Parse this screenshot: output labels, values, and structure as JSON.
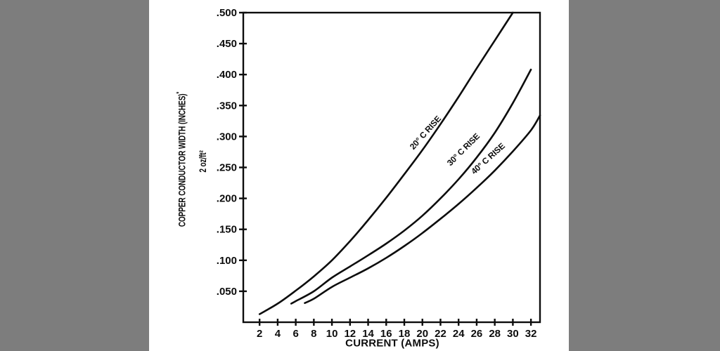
{
  "canvas": {
    "background_color": "#7d7d7d",
    "figure_background_color": "#ffffff",
    "line_color": "#0d0d0d"
  },
  "chart_data": {
    "type": "line",
    "title": "",
    "xlabel": "CURRENT (AMPS)",
    "ylabel": "COPPER CONDUCTOR WIDTH (INCHES)",
    "ylabel_footnote": "*",
    "ylabel_sub": "2 oz/ft²",
    "grid": false,
    "legend_position": "inline-curve-labels",
    "x_axis": {
      "axis_min": 0.2,
      "axis_max": 33,
      "ticks": [
        2,
        4,
        6,
        8,
        10,
        12,
        14,
        16,
        18,
        20,
        22,
        24,
        26,
        28,
        30,
        32
      ]
    },
    "y_axis": {
      "axis_min": 0,
      "axis_max": 0.5,
      "ticks": [
        {
          "v": 0.05,
          "label": ".050"
        },
        {
          "v": 0.1,
          "label": ".100"
        },
        {
          "v": 0.15,
          "label": ".150"
        },
        {
          "v": 0.2,
          "label": ".200"
        },
        {
          "v": 0.25,
          "label": ".250"
        },
        {
          "v": 0.3,
          "label": ".300"
        },
        {
          "v": 0.35,
          "label": ".350"
        },
        {
          "v": 0.4,
          "label": ".400"
        },
        {
          "v": 0.45,
          "label": ".450"
        },
        {
          "v": 0.5,
          "label": ".500"
        }
      ]
    },
    "series": [
      {
        "name": "20° C RISE",
        "color": "#0d0d0d",
        "label": {
          "x": 20.3,
          "y": 0.306,
          "angle": -48
        },
        "points": [
          [
            2,
            0.013
          ],
          [
            4,
            0.03
          ],
          [
            6,
            0.051
          ],
          [
            8,
            0.074
          ],
          [
            10,
            0.1
          ],
          [
            12,
            0.131
          ],
          [
            14,
            0.165
          ],
          [
            16,
            0.201
          ],
          [
            18,
            0.239
          ],
          [
            20,
            0.278
          ],
          [
            22,
            0.32
          ],
          [
            24,
            0.364
          ],
          [
            26,
            0.41
          ],
          [
            28,
            0.455
          ],
          [
            30,
            0.5
          ]
        ]
      },
      {
        "name": "30° C RISE",
        "color": "#0d0d0d",
        "label": {
          "x": 24.5,
          "y": 0.279,
          "angle": -45
        },
        "points": [
          [
            5.5,
            0.03
          ],
          [
            6,
            0.034
          ],
          [
            8,
            0.05
          ],
          [
            10,
            0.072
          ],
          [
            12,
            0.09
          ],
          [
            14,
            0.108
          ],
          [
            16,
            0.127
          ],
          [
            18,
            0.148
          ],
          [
            20,
            0.172
          ],
          [
            22,
            0.2
          ],
          [
            24,
            0.231
          ],
          [
            26,
            0.266
          ],
          [
            28,
            0.306
          ],
          [
            30,
            0.354
          ],
          [
            32,
            0.408
          ]
        ]
      },
      {
        "name": "40° C RISE",
        "color": "#0d0d0d",
        "label": {
          "x": 27.25,
          "y": 0.264,
          "angle": -42
        },
        "points": [
          [
            7,
            0.031
          ],
          [
            8,
            0.038
          ],
          [
            10,
            0.057
          ],
          [
            12,
            0.072
          ],
          [
            14,
            0.087
          ],
          [
            16,
            0.104
          ],
          [
            18,
            0.123
          ],
          [
            20,
            0.144
          ],
          [
            22,
            0.167
          ],
          [
            24,
            0.191
          ],
          [
            26,
            0.217
          ],
          [
            28,
            0.245
          ],
          [
            30,
            0.276
          ],
          [
            32,
            0.31
          ],
          [
            33,
            0.334
          ]
        ]
      }
    ]
  }
}
